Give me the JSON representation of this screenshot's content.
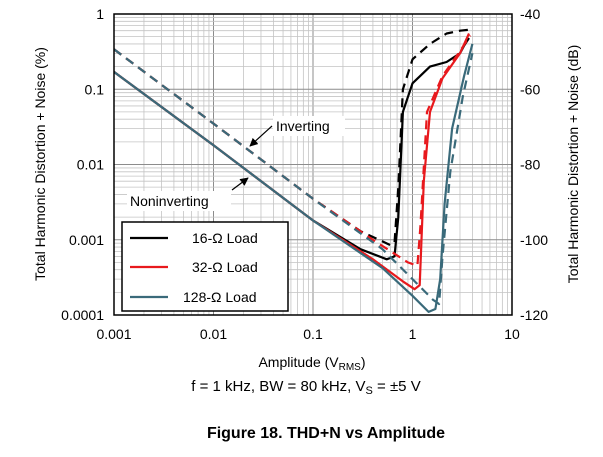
{
  "chart_data": {
    "type": "line",
    "title": "Figure 18. THD+N vs Amplitude",
    "xlabel": "Amplitude (V",
    "xlabel_sub": "RMS",
    "xlabel_end": ")",
    "ylabel": "Total Harmonic Distortion + Noise (%)",
    "ylabel_right": "Total Harmonic Distortion + Noise (dB)",
    "x_scale": "log",
    "y_scale": "log",
    "xlim": [
      0.001,
      10
    ],
    "ylim": [
      0.0001,
      1
    ],
    "ylim_right": [
      -120,
      -40
    ],
    "x_ticks": [
      "0.001",
      "0.01",
      "0.1",
      "1",
      "10"
    ],
    "y_ticks": [
      "0.0001",
      "0.001",
      "0.01",
      "0.1",
      "1"
    ],
    "y_ticks_right": [
      "-120",
      "-100",
      "-80",
      "-60",
      "-40"
    ],
    "grid": true,
    "condition_parts": [
      "f = 1 kHz, BW = 80 kHz, V",
      "S",
      " = ±5 V"
    ],
    "annotations": [
      "Inverting",
      "Noninverting"
    ],
    "legend": [
      {
        "label": "16-Ω Load",
        "color": "#000000"
      },
      {
        "label": "32-Ω Load",
        "color": "#e8191d"
      },
      {
        "label": "128-Ω Load",
        "color": "#3a6a7a"
      }
    ],
    "series": [
      {
        "name": "16-Ω Load",
        "mode": "Noninverting",
        "color": "#000000",
        "dashed": false,
        "x": [
          0.001,
          0.01,
          0.1,
          0.3,
          0.55,
          0.66,
          0.72,
          0.8,
          1.0,
          1.5,
          2.2,
          3.0,
          3.3,
          3.7
        ],
        "y": [
          0.17,
          0.018,
          0.0018,
          0.00075,
          0.00055,
          0.0006,
          0.002,
          0.05,
          0.12,
          0.2,
          0.23,
          0.3,
          0.38,
          0.48
        ]
      },
      {
        "name": "16-Ω Load",
        "mode": "Inverting",
        "color": "#000000",
        "dashed": true,
        "x": [
          0.001,
          0.01,
          0.1,
          0.3,
          0.6,
          0.66,
          0.72,
          0.8,
          1.0,
          1.5,
          2.2,
          3.0,
          3.8
        ],
        "y": [
          0.34,
          0.035,
          0.0035,
          0.0013,
          0.00085,
          0.0009,
          0.005,
          0.1,
          0.25,
          0.4,
          0.55,
          0.6,
          0.62
        ]
      },
      {
        "name": "32-Ω Load",
        "mode": "Noninverting",
        "color": "#e8191d",
        "dashed": false,
        "x": [
          0.001,
          0.01,
          0.1,
          0.4,
          0.8,
          1.05,
          1.18,
          1.3,
          1.5,
          2.0,
          3.0,
          3.7
        ],
        "y": [
          0.17,
          0.018,
          0.0018,
          0.00055,
          0.00028,
          0.00022,
          0.00025,
          0.006,
          0.05,
          0.14,
          0.3,
          0.55
        ]
      },
      {
        "name": "32-Ω Load",
        "mode": "Inverting",
        "color": "#e8191d",
        "dashed": true,
        "x": [
          0.001,
          0.01,
          0.1,
          0.4,
          0.9,
          1.12,
          1.2,
          1.4,
          2.0,
          3.0,
          3.8
        ],
        "y": [
          0.34,
          0.035,
          0.0035,
          0.001,
          0.0005,
          0.00045,
          0.0015,
          0.05,
          0.15,
          0.32,
          0.52
        ]
      },
      {
        "name": "128-Ω Load",
        "mode": "Noninverting",
        "color": "#3a6a7a",
        "dashed": false,
        "x": [
          0.001,
          0.01,
          0.1,
          0.5,
          1.0,
          1.45,
          1.7,
          1.9,
          2.1,
          2.5,
          3.3,
          4.0
        ],
        "y": [
          0.17,
          0.018,
          0.0018,
          0.00042,
          0.00018,
          0.00011,
          0.00012,
          0.0003,
          0.003,
          0.03,
          0.15,
          0.4
        ]
      },
      {
        "name": "128-Ω Load",
        "mode": "Inverting",
        "color": "#3a6a7a",
        "dashed": true,
        "x": [
          0.001,
          0.01,
          0.1,
          0.5,
          1.0,
          1.6,
          1.85,
          2.0,
          2.4,
          3.2,
          4.0
        ],
        "y": [
          0.34,
          0.035,
          0.0035,
          0.00075,
          0.0003,
          0.00016,
          0.00014,
          0.0006,
          0.008,
          0.08,
          0.3
        ]
      }
    ]
  }
}
